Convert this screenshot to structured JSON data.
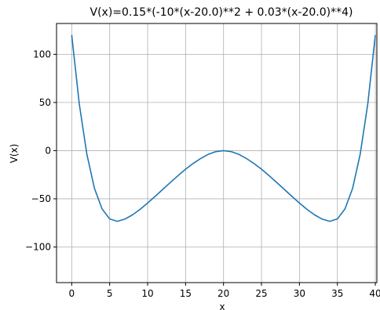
{
  "chart_data": {
    "type": "line",
    "title": "V(x)=0.15*(-10*(x-20.0)**2 + 0.03*(x-20.0)**4)",
    "xlabel": "x",
    "ylabel": "V(x)",
    "xlim": [
      -2,
      40.2
    ],
    "ylim": [
      -137,
      132
    ],
    "x_ticks": [
      0,
      5,
      10,
      15,
      20,
      25,
      30,
      35,
      40
    ],
    "y_ticks": [
      100,
      50,
      0,
      -50,
      -100
    ],
    "x_tick_labels": [
      "0",
      "5",
      "10",
      "15",
      "20",
      "25",
      "30",
      "35",
      "40"
    ],
    "y_tick_labels": [
      "100",
      "50",
      "0",
      "−50",
      "−100"
    ],
    "grid": true,
    "line_color": "#1f77b4",
    "series": [
      {
        "x": [
          0,
          1,
          2,
          3,
          4,
          5,
          6,
          7,
          8,
          9,
          10,
          11,
          12,
          13,
          14,
          15,
          16,
          17,
          18,
          19,
          20,
          21,
          22,
          23,
          24,
          25,
          26,
          27,
          28,
          29,
          30,
          31,
          32,
          33,
          34,
          35,
          36,
          37,
          38,
          39,
          40
        ],
        "values": [
          120,
          48.3,
          -3.9,
          -39.3,
          -60.5,
          -70.9,
          -73.4,
          -71.1,
          -66.7,
          -61.0,
          -54.4,
          -47.4,
          -40.2,
          -33.0,
          -26.0,
          -19.3,
          -13.3,
          -8.1,
          -3.8,
          -1.0,
          0,
          -1.0,
          -3.8,
          -8.1,
          -13.3,
          -19.3,
          -26.0,
          -33.0,
          -40.2,
          -47.4,
          -54.4,
          -61.0,
          -66.7,
          -71.1,
          -73.4,
          -70.9,
          -60.5,
          -39.3,
          -3.9,
          48.3,
          120
        ]
      }
    ]
  }
}
